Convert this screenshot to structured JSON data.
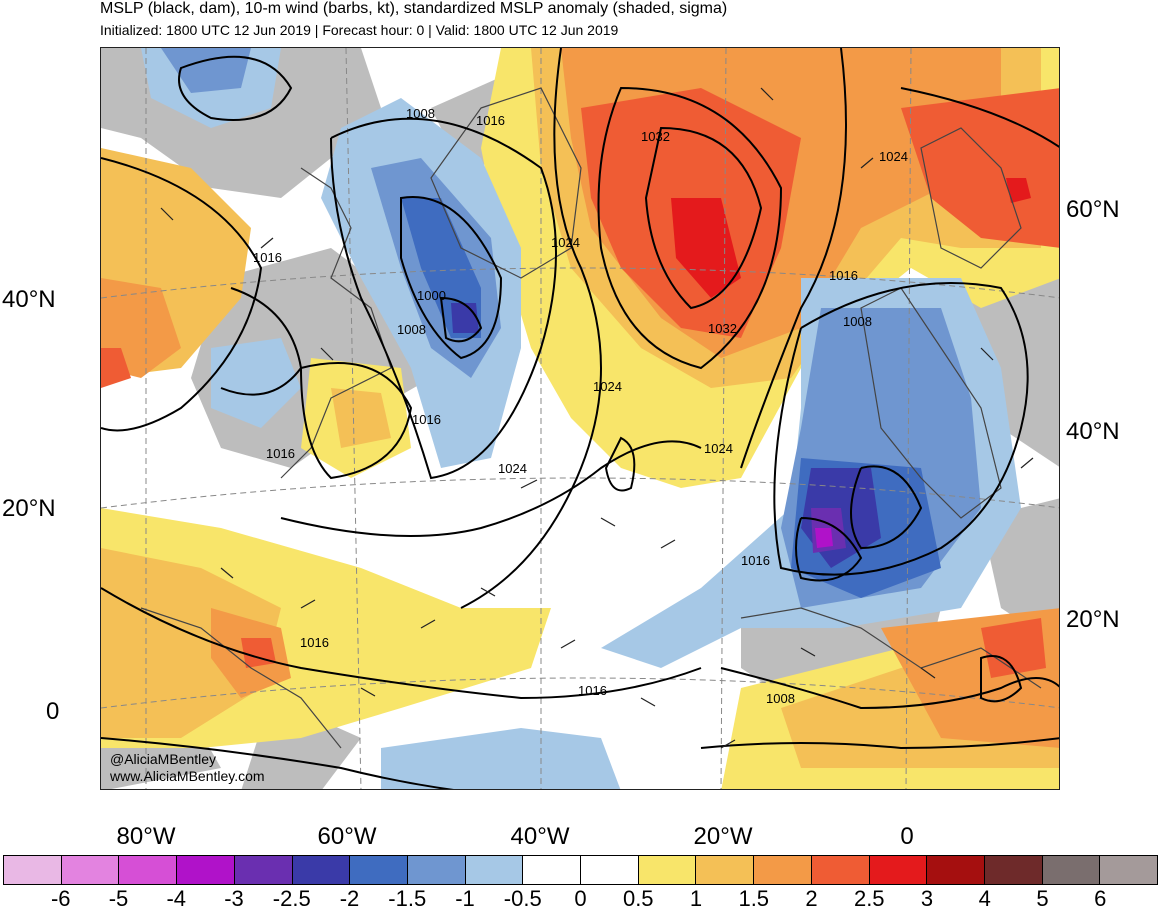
{
  "header": {
    "title": "MSLP (black, dam), 10-m wind (barbs, kt), standardized MSLP anomaly (shaded, sigma)",
    "subtitle": "Initialized: 1800 UTC 12 Jun 2019 | Forecast hour: 0 | Valid: 1800 UTC 12 Jun 2019"
  },
  "axes": {
    "lat_left": [
      "40°N",
      "20°N",
      "0"
    ],
    "lat_right": [
      "60°N",
      "40°N",
      "20°N"
    ],
    "lon_bottom": [
      "80°W",
      "60°W",
      "40°W",
      "20°W",
      "0"
    ]
  },
  "isobar_labels": [
    "1008",
    "1016",
    "1032",
    "1024",
    "1016",
    "1000",
    "1008",
    "1024",
    "1032",
    "1016",
    "1008",
    "1016",
    "1016",
    "1024",
    "1024",
    "1016",
    "1016",
    "1016",
    "1008",
    "1024"
  ],
  "credits": {
    "handle": "@AliciaMBentley",
    "site": "www.AliciaMBentley.com"
  },
  "colorbar": {
    "labels": [
      "-6",
      "-5",
      "-4",
      "-3",
      "-2.5",
      "-2",
      "-1.5",
      "-1",
      "-0.5",
      "0",
      "0.5",
      "1",
      "1.5",
      "2",
      "2.5",
      "3",
      "4",
      "5",
      "6"
    ],
    "colors": [
      "#e9b8e5",
      "#e383e0",
      "#d64fd6",
      "#b012c9",
      "#6a2fb0",
      "#3a3aa8",
      "#3f6cc0",
      "#6f96d0",
      "#a6c8e6",
      "#ffffff",
      "#ffffff",
      "#f8e56a",
      "#f4c056",
      "#f39a47",
      "#ef5c34",
      "#e41a1c",
      "#a50f0f",
      "#6e2a2a",
      "#7a6e6e",
      "#a49a9a"
    ]
  },
  "colors": {
    "land_mask": "#bdbdbd",
    "isobar": "#000000",
    "coast": "#444444"
  }
}
